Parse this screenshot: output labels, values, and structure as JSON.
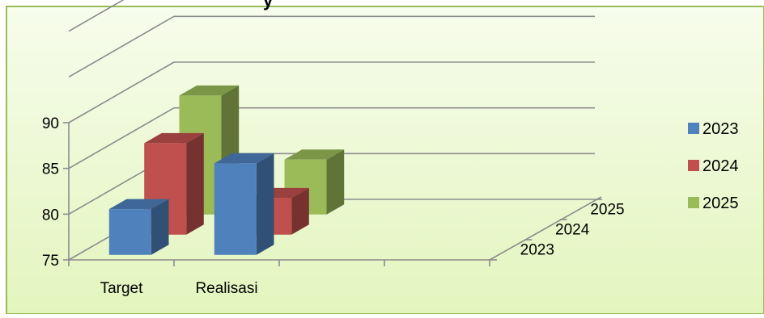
{
  "chart_data": {
    "type": "bar",
    "style": "3d-clustered-column",
    "title": "",
    "xlabel": "",
    "ylabel": "",
    "ylim": [
      75,
      90
    ],
    "yticks": [
      "75",
      "80",
      "85",
      "90"
    ],
    "categories": [
      "Target",
      "Realisasi"
    ],
    "depth_labels": [
      "2023",
      "2024",
      "2025"
    ],
    "series": [
      {
        "name": "2023",
        "color": "#4F81BD",
        "values": [
          80,
          85
        ]
      },
      {
        "name": "2024",
        "color": "#C0504D",
        "values": [
          85,
          79
        ]
      },
      {
        "name": "2025",
        "color": "#9BBB59",
        "values": [
          88,
          81
        ]
      }
    ],
    "legend_position": "right",
    "grid": true,
    "background": "#E6F5C4",
    "border_color": "#9BBB59",
    "truncated_title_fragment": "y"
  }
}
